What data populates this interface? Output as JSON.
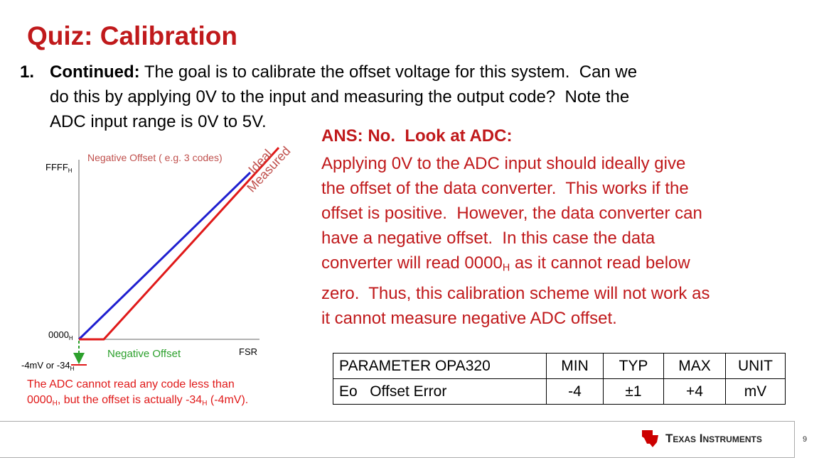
{
  "title": "Quiz: Calibration",
  "question": {
    "number": "1.",
    "label": "Continued:",
    "lines": [
      "The goal is to calibrate the offset voltage for this system.  Can we",
      "do this by applying 0V to the input and measuring the output code?  Note the",
      "ADC input range is 0V to 5V."
    ]
  },
  "answer": {
    "heading": "ANS: No.  Look at ADC:",
    "lines": [
      "Applying 0V to the ADC input should ideally give",
      "the offset of the data converter.  This works if the",
      "offset is positive.  However, the data converter can",
      "have a negative offset.  In this case the data",
      "converter will read 0000",
      "H",
      " as it cannot read below",
      "zero.  Thus, this calibration scheme will not work as",
      "it cannot measure negative ADC offset."
    ]
  },
  "diagram": {
    "offset_note": "Negative Offset ( e.g. 3 codes)",
    "ideal": "Ideal",
    "measured": "Measured",
    "ffff": "FFFF",
    "ffff_sub": "H",
    "zero": "0000",
    "zero_sub": "H",
    "fsr": "FSR",
    "negative_offset": "Negative Offset",
    "neg_value": "-4mV or -34",
    "neg_value_sub": "H",
    "caption_1": "The ADC cannot read any code less than",
    "caption_2a": "0000",
    "caption_2b": "H",
    "caption_2c": ", but the offset is actually -34",
    "caption_2d": "H",
    "caption_2e": " (-4mV)."
  },
  "table": {
    "header": [
      "PARAMETER OPA320",
      "MIN",
      "TYP",
      "MAX",
      "UNIT"
    ],
    "rows": [
      [
        "Eo   Offset Error",
        "-4",
        "±1",
        "+4",
        "mV"
      ]
    ]
  },
  "footer": {
    "logo": "Texas Instruments",
    "page": "9"
  }
}
